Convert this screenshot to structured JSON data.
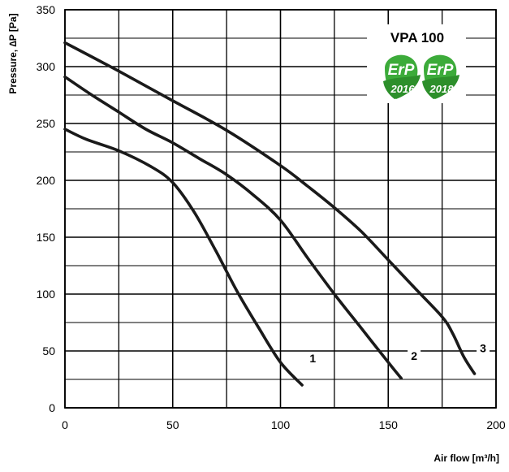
{
  "chart_data": {
    "type": "line",
    "title": "VPA 100",
    "xlabel": "Air flow [m³/h]",
    "ylabel": "Pressure, ∆P [Pa]",
    "xlim": [
      0,
      200
    ],
    "ylim": [
      0,
      350
    ],
    "x_ticks": [
      0,
      50,
      100,
      150,
      200
    ],
    "y_ticks": [
      0,
      50,
      100,
      150,
      200,
      250,
      300,
      350
    ],
    "x_grid": [
      0,
      25,
      50,
      75,
      100,
      125,
      150,
      175,
      200
    ],
    "y_grid": [
      0,
      25,
      50,
      75,
      100,
      125,
      150,
      175,
      200,
      225,
      250,
      275,
      300,
      325,
      350
    ],
    "grid": true,
    "series": [
      {
        "name": "1",
        "x": [
          0,
          10,
          25,
          40,
          50,
          60,
          70,
          80,
          90,
          100,
          110
        ],
        "y": [
          245,
          236,
          226,
          212,
          198,
          172,
          138,
          102,
          70,
          40,
          20
        ]
      },
      {
        "name": "2",
        "x": [
          0,
          12.5,
          25,
          37.5,
          50,
          62.5,
          75,
          87.5,
          100,
          112.5,
          125,
          137.5,
          150,
          156
        ],
        "y": [
          291,
          275,
          260,
          245,
          233,
          219,
          205,
          187,
          165,
          132,
          100,
          70,
          40,
          26
        ]
      },
      {
        "name": "3",
        "x": [
          0,
          25,
          50,
          75,
          100,
          112.5,
          125,
          137.5,
          150,
          162.5,
          175,
          180,
          185,
          190
        ],
        "y": [
          321,
          296,
          270,
          244,
          213,
          195,
          176,
          155,
          130,
          105,
          80,
          65,
          45,
          30
        ]
      }
    ],
    "curve_labels": [
      {
        "text": "1",
        "x": 115,
        "y": 40
      },
      {
        "text": "2",
        "x": 162,
        "y": 42
      },
      {
        "text": "3",
        "x": 194,
        "y": 49
      }
    ],
    "badges": [
      {
        "name": "erp-2016-badge",
        "line1": "ErP",
        "line2": "2016",
        "color": "#3cab3a"
      },
      {
        "name": "erp-2018-badge",
        "line1": "ErP",
        "line2": "2018",
        "color": "#3cab3a"
      }
    ],
    "colors": {
      "grid": "#000000",
      "curve": "#1a1a1a"
    }
  }
}
